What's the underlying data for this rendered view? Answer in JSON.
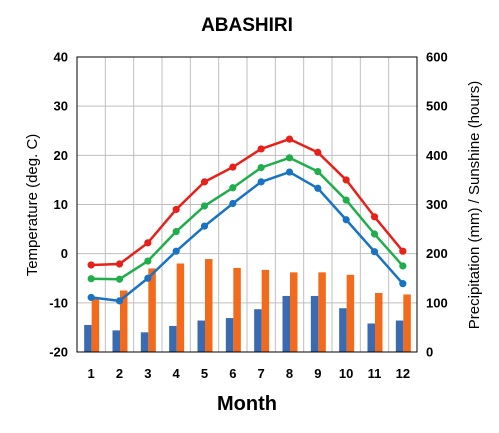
{
  "chart_data": {
    "type": "bar+line",
    "title": "ABASHIRI",
    "xlabel": "Month",
    "ylabel_left": "Temperature (deg. C)",
    "ylabel_right": "Precipitation (mm) / Sunshine (hours)",
    "categories": [
      "1",
      "2",
      "3",
      "4",
      "5",
      "6",
      "7",
      "8",
      "9",
      "10",
      "11",
      "12"
    ],
    "ylim_left": [
      -20,
      40
    ],
    "yticks_left": [
      "-20",
      "-10",
      "0",
      "10",
      "20",
      "30",
      "40"
    ],
    "ylim_right": [
      0,
      600
    ],
    "yticks_right": [
      "0",
      "100",
      "200",
      "300",
      "400",
      "500",
      "600"
    ],
    "grid": true,
    "legend": "none",
    "line_series": [
      {
        "color": "#e8201a",
        "values": [
          -2.3,
          -2.1,
          2.2,
          9.0,
          14.6,
          17.6,
          21.3,
          23.3,
          20.6,
          15.0,
          7.5,
          0.5
        ]
      },
      {
        "color": "#1fae4b",
        "values": [
          -5.1,
          -5.2,
          -1.5,
          4.5,
          9.7,
          13.4,
          17.5,
          19.5,
          16.7,
          10.9,
          4.0,
          -2.5
        ]
      },
      {
        "color": "#1873c3",
        "values": [
          -8.9,
          -9.6,
          -5.0,
          0.5,
          5.6,
          10.2,
          14.6,
          16.6,
          13.3,
          6.9,
          0.4,
          -6.1
        ]
      }
    ],
    "bar_series": [
      {
        "color": "#3a6ab0",
        "axis": "right",
        "values": [
          55,
          44,
          40,
          53,
          64,
          69,
          87,
          114,
          114,
          89,
          58,
          64
        ]
      },
      {
        "color": "#f26a1b",
        "axis": "right",
        "values": [
          108,
          125,
          170,
          180,
          189,
          171,
          167,
          162,
          162,
          157,
          120,
          117
        ]
      }
    ]
  }
}
